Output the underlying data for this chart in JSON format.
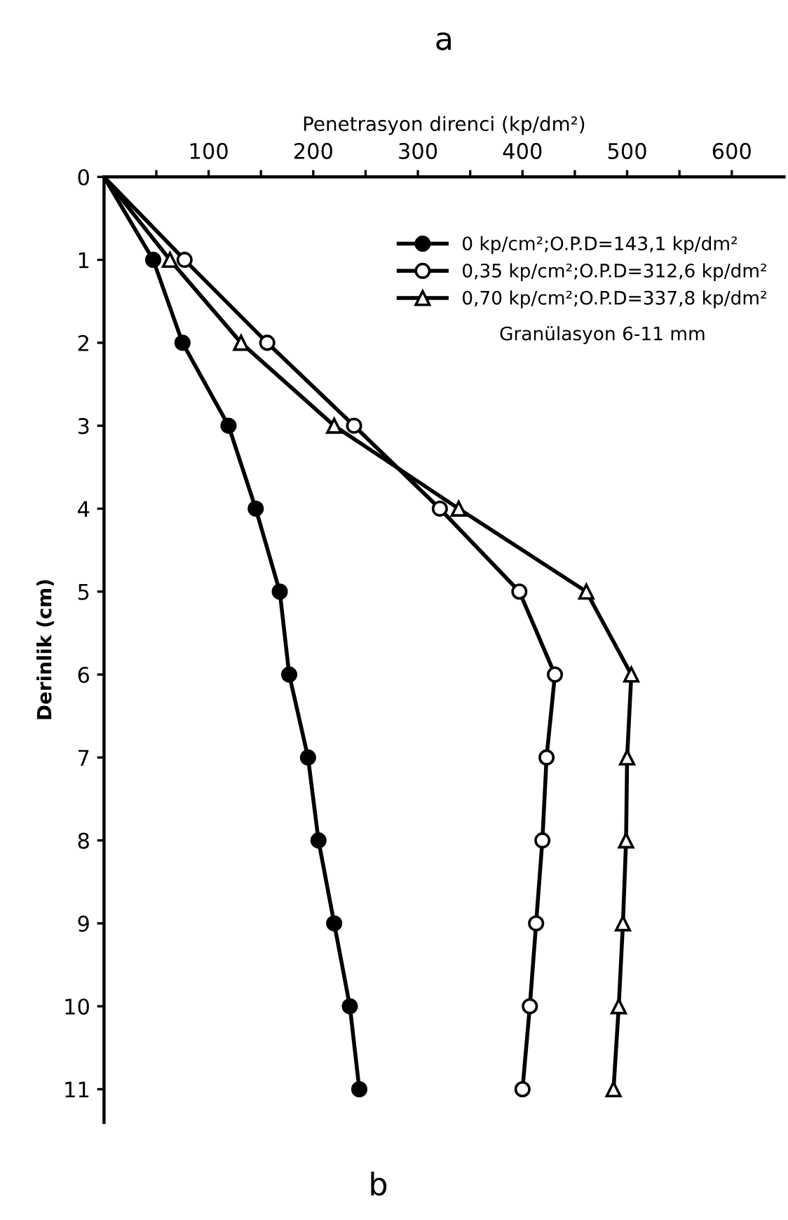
{
  "chart_data": {
    "type": "line",
    "title": "a",
    "xlabel": "Penetrasyon direnci (kp/dm²)",
    "ylabel": "Derinlik (cm)",
    "series": [
      {
        "name": "0 kp/cm²;O.P.D=143,1 kp/dm²",
        "color": "#000000",
        "marker": "filled circle",
        "x": [
          0,
          47,
          75,
          119,
          145,
          168,
          177,
          195,
          205,
          220,
          235,
          244
        ],
        "values": [
          0,
          1,
          2,
          3,
          4,
          5,
          6,
          7,
          8,
          9,
          10,
          11
        ]
      },
      {
        "name": "0,35 kp/cm²;O.P.D=312,6 kp/dm²",
        "color": "#000000",
        "marker": "circle",
        "x": [
          0,
          77,
          156,
          239,
          321,
          397,
          431,
          423,
          419,
          413,
          407,
          400
        ],
        "values": [
          0,
          1,
          2,
          3,
          4,
          5,
          6,
          7,
          8,
          9,
          10,
          11
        ]
      },
      {
        "name": "0,70 kp/cm²;O.P.D=337,8 kp/dm²",
        "color": "#000000",
        "marker": "triangle",
        "x": [
          0,
          63,
          131,
          220,
          339,
          461,
          504,
          500,
          499,
          496,
          492,
          487
        ],
        "values": [
          0,
          1,
          2,
          3,
          4,
          5,
          6,
          7,
          8,
          9,
          10,
          11
        ]
      }
    ],
    "xlim": [
      0,
      650
    ],
    "ylim": [
      11.4,
      0
    ],
    "xticks": [
      {
        "value": 50,
        "label": null
      },
      100,
      {
        "value": 150,
        "label": null
      },
      200,
      {
        "value": 250,
        "label": null
      },
      300,
      {
        "value": 350,
        "label": null
      },
      400,
      {
        "value": 450,
        "label": null
      },
      500,
      {
        "value": 550,
        "label": null
      },
      600
    ],
    "yticks": [
      0,
      1,
      2,
      3,
      4,
      5,
      6,
      7,
      8,
      9,
      10,
      11
    ],
    "legend": "top right",
    "grid": false,
    "line_style": "solid",
    "annotations": [
      "Granülasyon 6-11 mm",
      "b"
    ]
  }
}
